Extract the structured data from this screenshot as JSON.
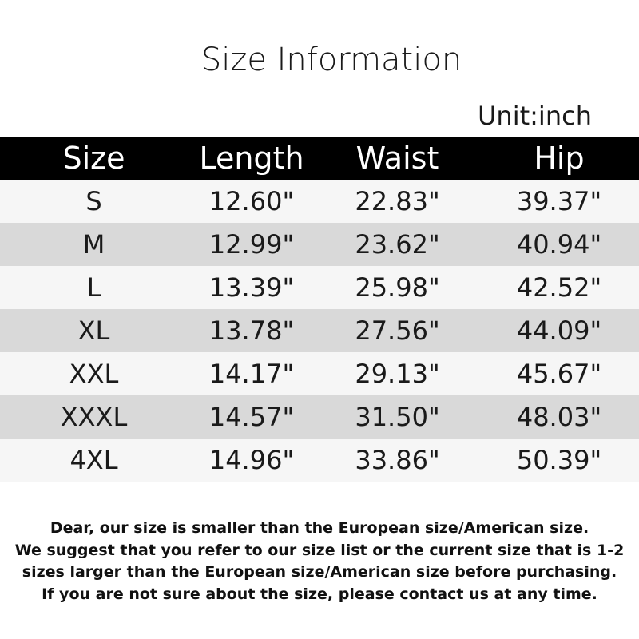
{
  "title": "Size Information",
  "unit": "Unit:inch",
  "table": {
    "headers": [
      "Size",
      "Length",
      "Waist",
      "Hip"
    ],
    "rows": [
      [
        "S",
        "12.60\"",
        "22.83\"",
        "39.37\""
      ],
      [
        "M",
        "12.99\"",
        "23.62\"",
        "40.94\""
      ],
      [
        "L",
        "13.39\"",
        "25.98\"",
        "42.52\""
      ],
      [
        "XL",
        "13.78\"",
        "27.56\"",
        "44.09\""
      ],
      [
        "XXL",
        "14.17\"",
        "29.13\"",
        "45.67\""
      ],
      [
        "XXXL",
        "14.57\"",
        "31.50\"",
        "48.03\""
      ],
      [
        "4XL",
        "14.96\"",
        "33.86\"",
        "50.39\""
      ]
    ]
  },
  "note": [
    "Dear, our size is smaller than the European size/American size.",
    "We suggest that you refer to our size list or the current size that is 1-2",
    "sizes larger than the European size/American size before purchasing.",
    "If you are not sure about the size, please contact us at any time."
  ],
  "colors": {
    "header_bg": "#000000",
    "row_light": "#f6f6f6",
    "row_dark": "#d9d9d9"
  }
}
